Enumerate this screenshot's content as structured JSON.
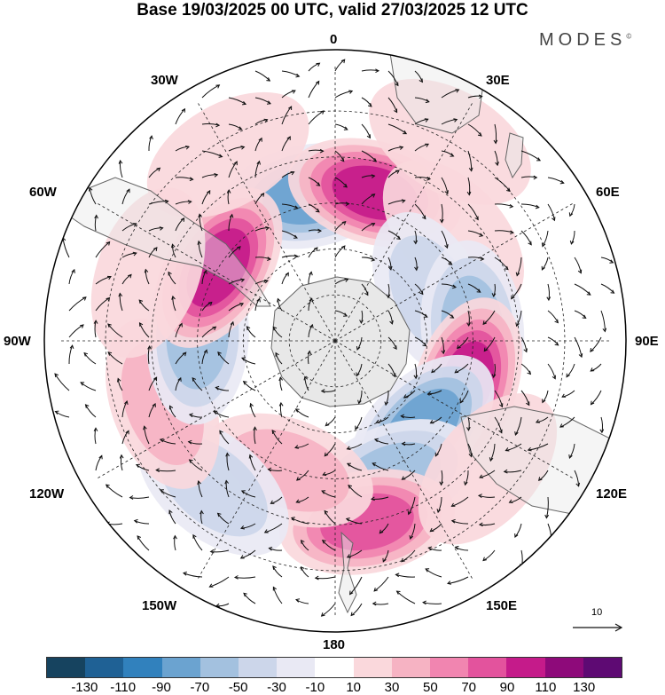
{
  "title": "Base 19/03/2025 00 UTC, valid 27/03/2025 12 UTC",
  "brand": "MODES",
  "brand_mark": "©",
  "lon_labels": {
    "l0": "0",
    "l30e": "30E",
    "l60e": "60E",
    "l90e": "90E",
    "l120e": "120E",
    "l150e": "150E",
    "l180": "180",
    "l150w": "150W",
    "l120w": "120W",
    "l90w": "90W",
    "l60w": "60W",
    "l30w": "30W"
  },
  "vector_reference": "10",
  "colorbar": {
    "colors": [
      "#16435f",
      "#1f6195",
      "#3181bd",
      "#6ba3d0",
      "#a3c1df",
      "#ccd6ea",
      "#e9e9f4",
      "#ffffff",
      "#fad8dc",
      "#f6b3c3",
      "#f185b0",
      "#e3539d",
      "#c51b8a",
      "#8e0a7a",
      "#5e0a73"
    ],
    "ticks": [
      "-130",
      "-110",
      "-90",
      "-70",
      "-50",
      "-30",
      "-10",
      "10",
      "30",
      "50",
      "70",
      "90",
      "110",
      "130"
    ]
  },
  "colors": {
    "land": "#e8e8e8",
    "coast": "#666666",
    "grid": "#222222",
    "arrow": "#111111"
  },
  "anomaly_centers": [
    {
      "lon": -10,
      "lat": -42,
      "value": -95
    },
    {
      "lon": 15,
      "lat": -40,
      "value": 105
    },
    {
      "lon": 48,
      "lat": -38,
      "value": 35
    },
    {
      "lon": 65,
      "lat": -55,
      "value": -45
    },
    {
      "lon": 85,
      "lat": -45,
      "value": -65
    },
    {
      "lon": 108,
      "lat": -45,
      "value": 105
    },
    {
      "lon": 135,
      "lat": -50,
      "value": -95
    },
    {
      "lon": 158,
      "lat": -42,
      "value": -75
    },
    {
      "lon": 170,
      "lat": -30,
      "value": 95
    },
    {
      "lon": -160,
      "lat": -45,
      "value": 55
    },
    {
      "lon": -140,
      "lat": -28,
      "value": -45
    },
    {
      "lon": -110,
      "lat": -30,
      "value": 45
    },
    {
      "lon": -88,
      "lat": -45,
      "value": -65
    },
    {
      "lon": -58,
      "lat": -45,
      "value": 115
    },
    {
      "lon": -70,
      "lat": -25,
      "value": 35
    },
    {
      "lon": -30,
      "lat": -20,
      "value": 30
    },
    {
      "lon": 30,
      "lat": -15,
      "value": 20
    },
    {
      "lon": 130,
      "lat": -25,
      "value": 30
    }
  ]
}
